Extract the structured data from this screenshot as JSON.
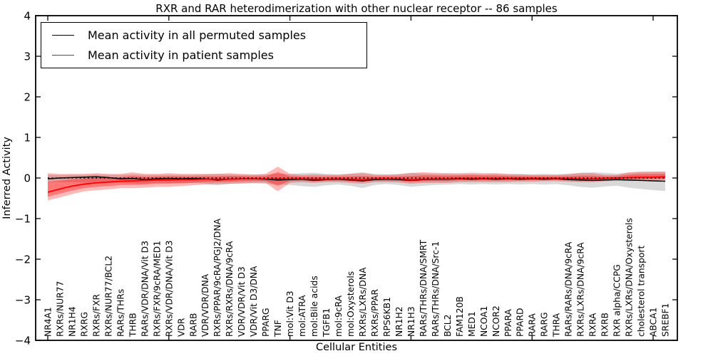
{
  "chart_data": {
    "type": "line",
    "title": "RXR and RAR heterodimerization with other nuclear receptor -- 86 samples",
    "xlabel": "Cellular Entities",
    "ylabel": "Inferred Activity",
    "ylim": [
      -4,
      4
    ],
    "yticks": [
      -4,
      -3,
      -2,
      -1,
      0,
      1,
      2,
      3,
      4
    ],
    "ytick_labels": [
      "−4",
      "−3",
      "−2",
      "−1",
      "0",
      "1",
      "2",
      "3",
      "4"
    ],
    "xtick_indices": [
      0,
      10,
      20,
      30,
      40,
      50
    ],
    "grid": false,
    "legend_position": "upper left",
    "categories": [
      "NR4A1",
      "RXRs/NUR77",
      "NR1H4",
      "RXRG",
      "RXRs/FXR",
      "RXRs/NUR77/BCL2",
      "RARs/THRs",
      "THRB",
      "RARs/VDR/DNA/Vit D3",
      "RXRs/FXR/9cRA/MED1",
      "RXRs/VDR/DNA/Vit D3",
      "VDR",
      "RARB",
      "VDR/VDR/DNA",
      "RXRs/PPAR/9cRA/PGJ2/DNA",
      "RXRs/RXRs/DNA/9cRA",
      "VDR/VDR/Vit D3",
      "VDR/Vit D3/DNA",
      "PPARG",
      "TNF",
      "mol:Vit D3",
      "mol:ATRA",
      "mol:Bile acids",
      "TGFB1",
      "mol:9cRA",
      "mol:Oxysterols",
      "RXRs/LXRs/DNA",
      "RXRs/PPAR",
      "RPS6KB1",
      "NR1H2",
      "NR1H3",
      "RARs/THRs/DNA/SMRT",
      "RARs/THRs/DNA/Src-1",
      "BCL2",
      "FAM120B",
      "MED1",
      "NCOA1",
      "NCOR2",
      "PPARA",
      "PPARD",
      "RARA",
      "RARG",
      "THRA",
      "RARs/RARs/DNA/9cRA",
      "RXRs/LXRs/DNA/9cRA",
      "RXRA",
      "RXRB",
      "RXR alpha/CCPG",
      "RXRs/LXRs/DNA/Oxysterols",
      "cholesterol transport",
      "ABCA1",
      "SREBF1"
    ],
    "series": [
      {
        "name": "Mean activity in all permuted samples",
        "color": "#000000",
        "band_color": "#aaaaaa",
        "band_alpha": 0.45,
        "values": [
          -0.02,
          0.0,
          0.01,
          0.02,
          0.03,
          0.01,
          -0.02,
          -0.01,
          -0.04,
          -0.02,
          -0.01,
          -0.02,
          -0.01,
          -0.02,
          -0.05,
          -0.03,
          -0.02,
          -0.02,
          -0.03,
          -0.05,
          -0.04,
          -0.03,
          -0.06,
          -0.04,
          -0.03,
          -0.05,
          -0.07,
          -0.04,
          -0.03,
          -0.04,
          -0.06,
          -0.04,
          -0.03,
          -0.03,
          -0.02,
          -0.03,
          -0.02,
          -0.03,
          -0.02,
          -0.03,
          -0.02,
          -0.03,
          -0.02,
          -0.04,
          -0.05,
          -0.06,
          -0.05,
          -0.04,
          -0.05,
          -0.06,
          -0.07,
          -0.08
        ],
        "band_hi": [
          0.08,
          0.07,
          0.08,
          0.08,
          0.09,
          0.08,
          0.08,
          0.09,
          0.08,
          0.08,
          0.08,
          0.08,
          0.08,
          0.09,
          0.1,
          0.09,
          0.08,
          0.08,
          0.09,
          0.1,
          0.1,
          0.12,
          0.13,
          0.1,
          0.09,
          0.11,
          0.14,
          0.1,
          0.09,
          0.1,
          0.13,
          0.11,
          0.1,
          0.1,
          0.09,
          0.1,
          0.09,
          0.1,
          0.09,
          0.1,
          0.09,
          0.1,
          0.09,
          0.11,
          0.13,
          0.14,
          0.13,
          0.11,
          0.13,
          0.14,
          0.15,
          0.15
        ],
        "band_lo": [
          -0.1,
          -0.1,
          -0.1,
          -0.11,
          -0.12,
          -0.12,
          -0.12,
          -0.13,
          -0.14,
          -0.12,
          -0.12,
          -0.13,
          -0.12,
          -0.14,
          -0.18,
          -0.15,
          -0.14,
          -0.13,
          -0.14,
          -0.16,
          -0.17,
          -0.2,
          -0.22,
          -0.18,
          -0.16,
          -0.19,
          -0.25,
          -0.17,
          -0.15,
          -0.17,
          -0.22,
          -0.19,
          -0.17,
          -0.16,
          -0.15,
          -0.16,
          -0.15,
          -0.16,
          -0.15,
          -0.16,
          -0.15,
          -0.16,
          -0.15,
          -0.18,
          -0.22,
          -0.24,
          -0.21,
          -0.19,
          -0.24,
          -0.27,
          -0.3,
          -0.32
        ]
      },
      {
        "name": "Mean activity in patient samples",
        "color": "#ff0000",
        "band_color": "#ff0000",
        "band_alpha": 0.28,
        "values": [
          -0.35,
          -0.27,
          -0.2,
          -0.15,
          -0.12,
          -0.1,
          -0.08,
          -0.07,
          -0.06,
          -0.05,
          -0.05,
          -0.04,
          -0.04,
          -0.03,
          -0.03,
          -0.03,
          -0.02,
          -0.02,
          -0.02,
          -0.02,
          -0.02,
          -0.02,
          -0.03,
          -0.03,
          -0.02,
          -0.03,
          -0.04,
          -0.02,
          -0.02,
          -0.02,
          -0.04,
          -0.03,
          -0.02,
          -0.02,
          -0.01,
          -0.01,
          -0.01,
          -0.01,
          -0.01,
          -0.01,
          -0.01,
          -0.01,
          -0.01,
          -0.01,
          -0.02,
          -0.02,
          -0.01,
          0.0,
          0.01,
          0.02,
          0.02,
          0.03
        ],
        "band_hi": [
          0.12,
          0.1,
          0.1,
          0.1,
          0.12,
          0.1,
          0.1,
          0.14,
          0.1,
          0.1,
          0.12,
          0.1,
          0.1,
          0.1,
          0.1,
          0.12,
          0.1,
          0.09,
          0.1,
          0.28,
          0.1,
          0.08,
          0.09,
          0.08,
          0.08,
          0.1,
          0.12,
          0.08,
          0.08,
          0.09,
          0.12,
          0.14,
          0.13,
          0.12,
          0.12,
          0.13,
          0.12,
          0.12,
          0.1,
          0.09,
          0.08,
          0.08,
          0.08,
          0.09,
          0.12,
          0.12,
          0.08,
          0.08,
          0.14,
          0.16,
          0.16,
          0.16
        ],
        "band_lo": [
          -0.55,
          -0.48,
          -0.4,
          -0.33,
          -0.3,
          -0.28,
          -0.25,
          -0.25,
          -0.24,
          -0.22,
          -0.22,
          -0.2,
          -0.18,
          -0.16,
          -0.15,
          -0.14,
          -0.13,
          -0.12,
          -0.12,
          -0.33,
          -0.12,
          -0.1,
          -0.12,
          -0.1,
          -0.1,
          -0.12,
          -0.14,
          -0.1,
          -0.1,
          -0.11,
          -0.14,
          -0.12,
          -0.12,
          -0.12,
          -0.1,
          -0.1,
          -0.1,
          -0.1,
          -0.1,
          -0.09,
          -0.09,
          -0.08,
          -0.08,
          -0.09,
          -0.1,
          -0.1,
          -0.08,
          -0.07,
          -0.07,
          -0.07,
          -0.06,
          -0.05
        ]
      }
    ],
    "zero_line": {
      "style": "dotted",
      "color": "#000000"
    }
  }
}
